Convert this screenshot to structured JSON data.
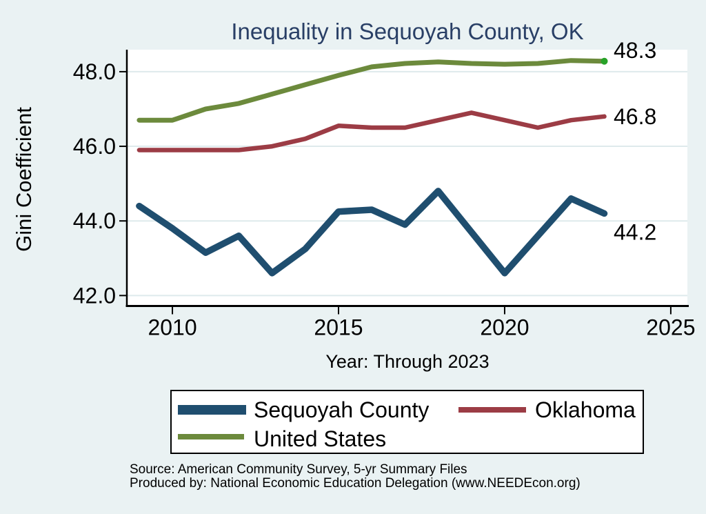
{
  "title": "Inequality in Sequoyah County, OK",
  "source": {
    "line1": "Source: American Community Survey, 5-yr Summary Files",
    "line2": "Produced by: National Economic Education Delegation (www.NEEDEcon.org)"
  },
  "colors": {
    "background": "#EAF2F3",
    "plot_background": "#FFFFFF",
    "gridline": "#DEEAEC",
    "axis": "#000000",
    "title_text": "#293F66",
    "end_marker": "#28A228"
  },
  "chart_data": {
    "type": "line",
    "title": "Inequality in Sequoyah County, OK",
    "xlabel": "Year: Through 2023",
    "ylabel": "Gini Coefficient",
    "grid": "horizontal",
    "legend_position": "bottom",
    "x": [
      2009,
      2010,
      2011,
      2012,
      2013,
      2014,
      2015,
      2016,
      2017,
      2018,
      2019,
      2020,
      2021,
      2022,
      2023
    ],
    "xlim": [
      2008.65,
      2025.5
    ],
    "ylim": [
      41.72,
      48.59
    ],
    "xticks": [
      {
        "v": 2010,
        "label": "2010"
      },
      {
        "v": 2015,
        "label": "2015"
      },
      {
        "v": 2020,
        "label": "2020"
      },
      {
        "v": 2025,
        "label": "2025"
      }
    ],
    "yticks": [
      {
        "v": 42.0,
        "label": "42.0"
      },
      {
        "v": 44.0,
        "label": "44.0"
      },
      {
        "v": 46.0,
        "label": "46.0"
      },
      {
        "v": 48.0,
        "label": "48.0"
      }
    ],
    "series": [
      {
        "name": "Sequoyah County",
        "color": "#1F4E6F",
        "width": 9.5,
        "values": [
          44.4,
          43.8,
          43.15,
          43.6,
          42.6,
          43.25,
          44.25,
          44.3,
          43.9,
          44.8,
          43.7,
          42.6,
          43.6,
          44.6,
          44.2
        ],
        "end_label": "44.2",
        "end_marker": false
      },
      {
        "name": "Oklahoma",
        "color": "#9C3C45",
        "width": 6.5,
        "values": [
          45.9,
          45.9,
          45.9,
          45.9,
          46.0,
          46.2,
          46.55,
          46.5,
          46.5,
          46.7,
          46.9,
          46.7,
          46.5,
          46.7,
          46.8
        ],
        "end_label": "46.8",
        "end_marker": false
      },
      {
        "name": "United States",
        "color": "#6C8A3C",
        "width": 7,
        "values": [
          46.7,
          46.7,
          47.0,
          47.15,
          47.4,
          47.65,
          47.9,
          48.13,
          48.22,
          48.26,
          48.22,
          48.2,
          48.22,
          48.3,
          48.28
        ],
        "end_label": "48.3",
        "end_marker": true
      }
    ]
  }
}
